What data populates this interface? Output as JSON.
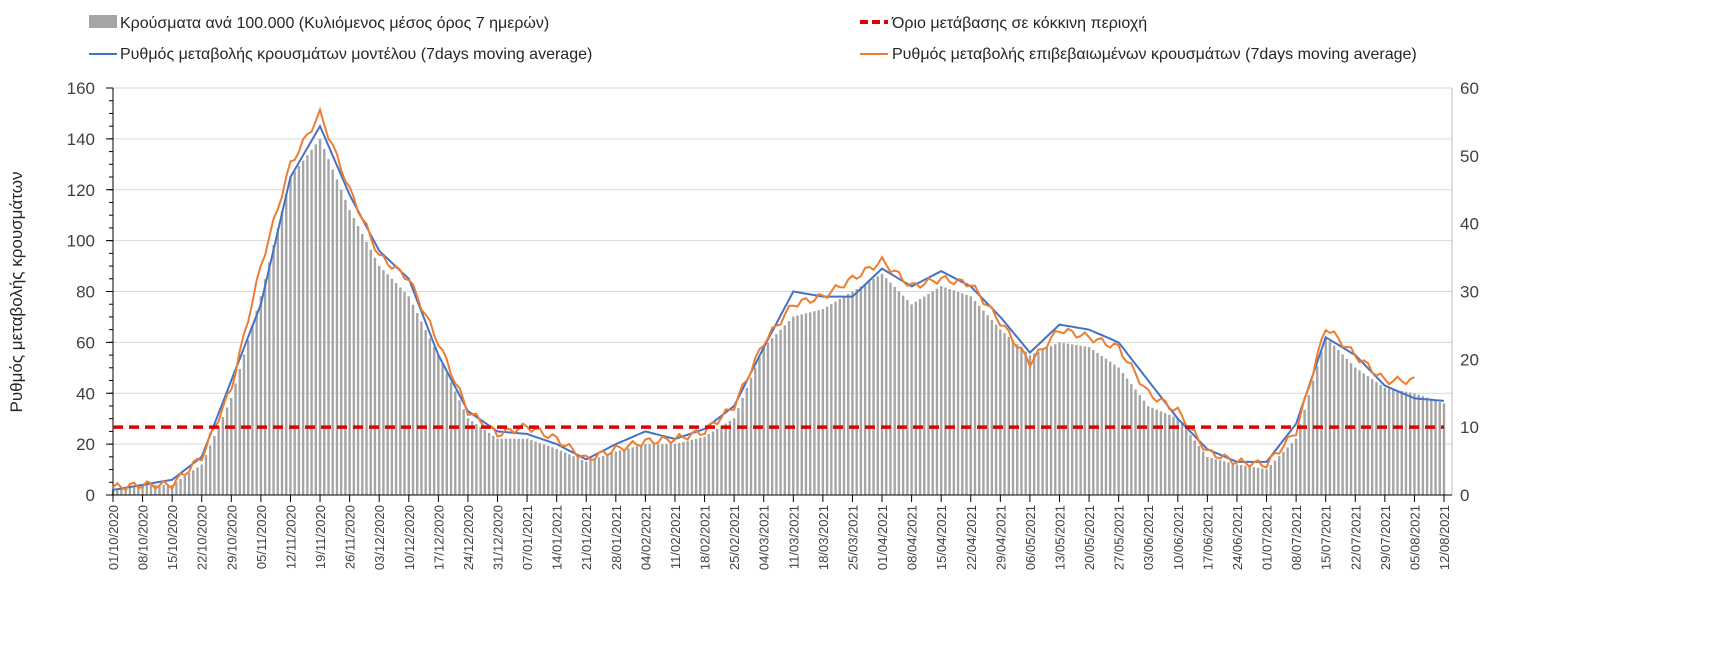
{
  "chart_data": {
    "type": "bar+line",
    "ylabel": "Ρυθμός μεταβολής κρουσμάτων",
    "ylim_left": [
      0,
      160
    ],
    "yticks_left": [
      "0",
      "20",
      "40",
      "60",
      "80",
      "100",
      "120",
      "140",
      "160"
    ],
    "ylim_right": [
      0,
      60
    ],
    "yticks_right": [
      "0",
      "10",
      "20",
      "30",
      "40",
      "50",
      "60"
    ],
    "grid": true,
    "legend": {
      "bars": "Κρούσματα ανά 100.000 (Κυλιόμενος μέσος όρος 7 ημερών)",
      "threshold": "Όριο μετάβασης σε κόκκινη περιοχή",
      "model": "Ρυθμός μεταβολής κρουσμάτων μοντέλου (7days moving average)",
      "confirmed": "Ρυθμός μεταβολής επιβεβαιωμένων κρουσμάτων (7days moving average)"
    },
    "x": [
      "01/10/2020",
      "08/10/2020",
      "15/10/2020",
      "22/10/2020",
      "29/10/2020",
      "05/11/2020",
      "12/11/2020",
      "19/11/2020",
      "26/11/2020",
      "03/12/2020",
      "10/12/2020",
      "17/12/2020",
      "24/12/2020",
      "31/12/2020",
      "07/01/2021",
      "14/01/2021",
      "21/01/2021",
      "28/01/2021",
      "04/02/2021",
      "11/02/2021",
      "18/02/2021",
      "25/02/2021",
      "04/03/2021",
      "11/03/2021",
      "18/03/2021",
      "25/03/2021",
      "01/04/2021",
      "08/04/2021",
      "15/04/2021",
      "22/04/2021",
      "29/04/2021",
      "06/05/2021",
      "13/05/2021",
      "20/05/2021",
      "27/05/2021",
      "03/06/2021",
      "10/06/2021",
      "17/06/2021",
      "24/06/2021",
      "01/07/2021",
      "08/07/2021",
      "15/07/2021",
      "22/07/2021",
      "29/07/2021",
      "05/08/2021",
      "12/08/2021"
    ],
    "series": [
      {
        "name": "Κρούσματα ανά 100.000 (Κυλιόμενος μέσος όρος 7 ημερών)",
        "axis": "right",
        "type": "bar",
        "color": "#A5A5A5",
        "values": [
          0.8,
          1.5,
          1.5,
          4.5,
          14.3,
          29.3,
          46.9,
          52.5,
          42,
          33.8,
          29.3,
          20.6,
          11.3,
          8.3,
          8.3,
          6.8,
          4.9,
          6.4,
          7.5,
          7.5,
          8.6,
          11.3,
          21.8,
          26.3,
          27.4,
          30,
          32.6,
          28.1,
          30.8,
          29.3,
          24.4,
          20.6,
          22.5,
          21.8,
          18.8,
          13.1,
          11.3,
          5.6,
          4.5,
          3.8,
          8.3,
          23.3,
          18.8,
          15.8,
          15,
          13.5
        ]
      },
      {
        "name": "Ρυθμός μεταβολής κρουσμάτων μοντέλου (7days moving average)",
        "axis": "left",
        "type": "line",
        "color": "#4472C4",
        "values": [
          2,
          4,
          6,
          15,
          45,
          75,
          125,
          145,
          118,
          96,
          85,
          55,
          33,
          25,
          24,
          20,
          14,
          20,
          25,
          22,
          26,
          35,
          58,
          80,
          78,
          78,
          89,
          82,
          88,
          82,
          70,
          56,
          67,
          65,
          60,
          45,
          30,
          18,
          13,
          13,
          28,
          62,
          55,
          43,
          38,
          37
        ]
      },
      {
        "name": "Ρυθμός μεταβολής επιβεβαιωμένων κρουσμάτων (7days moving average)",
        "axis": "left",
        "type": "line",
        "color": "#ED7D31",
        "values": [
          3,
          4,
          4,
          15,
          42,
          90,
          130,
          150,
          120,
          94,
          85,
          60,
          33,
          24,
          27,
          22,
          14,
          18,
          21,
          22,
          25,
          35,
          60,
          75,
          78,
          85,
          92,
          82,
          85,
          83,
          68,
          52,
          65,
          62,
          58,
          40,
          33,
          17,
          13,
          12,
          25,
          66,
          55,
          45,
          45,
          null
        ]
      },
      {
        "name": "Όριο μετάβασης σε κόκκινη περιοχή",
        "axis": "right",
        "type": "hline",
        "color": "#E00000",
        "value": 10
      }
    ]
  }
}
